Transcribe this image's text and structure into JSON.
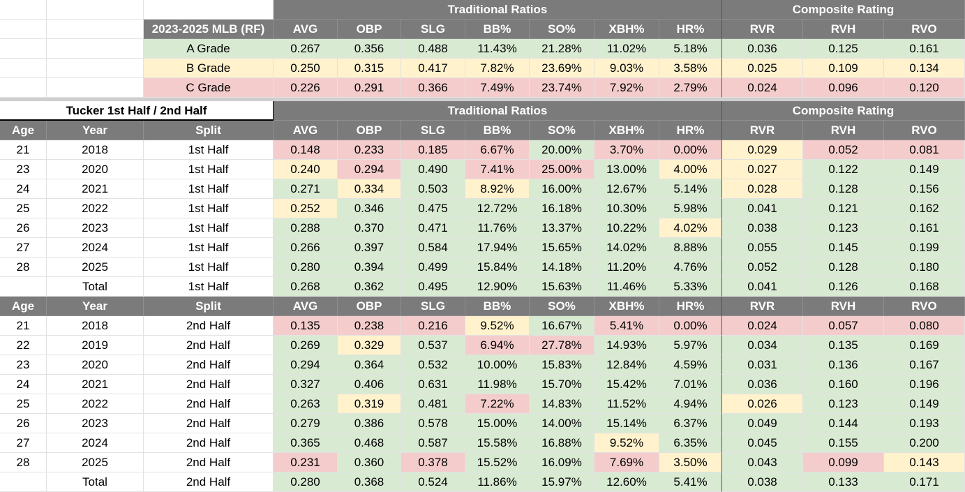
{
  "top": {
    "group_headers": {
      "traditional": "Traditional Ratios",
      "composite": "Composite Rating"
    },
    "label_header": "2023-2025 MLB (RF)",
    "columns": [
      "AVG",
      "OBP",
      "SLG",
      "BB%",
      "SO%",
      "XBH%",
      "HR%",
      "RVR",
      "RVH",
      "RVO"
    ],
    "grades": [
      {
        "label": "A Grade",
        "color": "green",
        "values": [
          "0.267",
          "0.356",
          "0.488",
          "11.43%",
          "21.28%",
          "11.02%",
          "5.18%",
          "0.036",
          "0.125",
          "0.161"
        ]
      },
      {
        "label": "B Grade",
        "color": "yellow",
        "values": [
          "0.250",
          "0.315",
          "0.417",
          "7.82%",
          "23.69%",
          "9.03%",
          "3.58%",
          "0.025",
          "0.109",
          "0.134"
        ]
      },
      {
        "label": "C Grade",
        "color": "red",
        "values": [
          "0.226",
          "0.291",
          "0.366",
          "7.49%",
          "23.74%",
          "7.92%",
          "2.79%",
          "0.024",
          "0.096",
          "0.120"
        ]
      }
    ]
  },
  "tucker": {
    "title": "Tucker 1st Half / 2nd Half",
    "group_headers": {
      "traditional": "Traditional Ratios",
      "composite": "Composite Rating"
    },
    "headers": [
      "Age",
      "Year",
      "Split",
      "AVG",
      "OBP",
      "SLG",
      "BB%",
      "SO%",
      "XBH%",
      "HR%",
      "RVR",
      "RVH",
      "RVO"
    ],
    "first_half": [
      {
        "age": "21",
        "year": "2018",
        "split": "1st Half",
        "values": [
          "0.148",
          "0.233",
          "0.185",
          "6.67%",
          "20.00%",
          "3.70%",
          "0.00%",
          "0.029",
          "0.052",
          "0.081"
        ],
        "colors": [
          "red",
          "red",
          "red",
          "red",
          "green",
          "red",
          "red",
          "yellow",
          "red",
          "red"
        ]
      },
      {
        "age": "23",
        "year": "2020",
        "split": "1st Half",
        "values": [
          "0.240",
          "0.294",
          "0.490",
          "7.41%",
          "25.00%",
          "13.00%",
          "4.00%",
          "0.027",
          "0.122",
          "0.149"
        ],
        "colors": [
          "yellow",
          "red",
          "green",
          "red",
          "red",
          "green",
          "yellow",
          "yellow",
          "green",
          "green"
        ]
      },
      {
        "age": "24",
        "year": "2021",
        "split": "1st Half",
        "values": [
          "0.271",
          "0.334",
          "0.503",
          "8.92%",
          "16.00%",
          "12.67%",
          "5.14%",
          "0.028",
          "0.128",
          "0.156"
        ],
        "colors": [
          "green",
          "yellow",
          "green",
          "yellow",
          "green",
          "green",
          "green",
          "yellow",
          "green",
          "green"
        ]
      },
      {
        "age": "25",
        "year": "2022",
        "split": "1st Half",
        "values": [
          "0.252",
          "0.346",
          "0.475",
          "12.72%",
          "16.18%",
          "10.30%",
          "5.98%",
          "0.041",
          "0.121",
          "0.162"
        ],
        "colors": [
          "yellow",
          "green",
          "green",
          "green",
          "green",
          "green",
          "green",
          "green",
          "green",
          "green"
        ]
      },
      {
        "age": "26",
        "year": "2023",
        "split": "1st Half",
        "values": [
          "0.288",
          "0.370",
          "0.471",
          "11.76%",
          "13.37%",
          "10.22%",
          "4.02%",
          "0.038",
          "0.123",
          "0.161"
        ],
        "colors": [
          "green",
          "green",
          "green",
          "green",
          "green",
          "green",
          "yellow",
          "green",
          "green",
          "green"
        ]
      },
      {
        "age": "27",
        "year": "2024",
        "split": "1st Half",
        "values": [
          "0.266",
          "0.397",
          "0.584",
          "17.94%",
          "15.65%",
          "14.02%",
          "8.88%",
          "0.055",
          "0.145",
          "0.199"
        ],
        "colors": [
          "green",
          "green",
          "green",
          "green",
          "green",
          "green",
          "green",
          "green",
          "green",
          "green"
        ]
      },
      {
        "age": "28",
        "year": "2025",
        "split": "1st Half",
        "values": [
          "0.280",
          "0.394",
          "0.499",
          "15.84%",
          "14.18%",
          "11.20%",
          "4.76%",
          "0.052",
          "0.128",
          "0.180"
        ],
        "colors": [
          "green",
          "green",
          "green",
          "green",
          "green",
          "green",
          "green",
          "green",
          "green",
          "green"
        ]
      },
      {
        "age": "",
        "year": "Total",
        "split": "1st Half",
        "values": [
          "0.268",
          "0.362",
          "0.495",
          "12.90%",
          "15.63%",
          "11.46%",
          "5.33%",
          "0.041",
          "0.126",
          "0.168"
        ],
        "colors": [
          "green",
          "green",
          "green",
          "green",
          "green",
          "green",
          "green",
          "green",
          "green",
          "green"
        ]
      }
    ],
    "second_half": [
      {
        "age": "21",
        "year": "2018",
        "split": "2nd Half",
        "values": [
          "0.135",
          "0.238",
          "0.216",
          "9.52%",
          "16.67%",
          "5.41%",
          "0.00%",
          "0.024",
          "0.057",
          "0.080"
        ],
        "colors": [
          "red",
          "red",
          "red",
          "yellow",
          "green",
          "red",
          "red",
          "red",
          "red",
          "red"
        ]
      },
      {
        "age": "22",
        "year": "2019",
        "split": "2nd Half",
        "values": [
          "0.269",
          "0.329",
          "0.537",
          "6.94%",
          "27.78%",
          "14.93%",
          "5.97%",
          "0.034",
          "0.135",
          "0.169"
        ],
        "colors": [
          "green",
          "yellow",
          "green",
          "red",
          "red",
          "green",
          "green",
          "green",
          "green",
          "green"
        ]
      },
      {
        "age": "23",
        "year": "2020",
        "split": "2nd Half",
        "values": [
          "0.294",
          "0.364",
          "0.532",
          "10.00%",
          "15.83%",
          "12.84%",
          "4.59%",
          "0.031",
          "0.136",
          "0.167"
        ],
        "colors": [
          "green",
          "green",
          "green",
          "green",
          "green",
          "green",
          "green",
          "green",
          "green",
          "green"
        ]
      },
      {
        "age": "24",
        "year": "2021",
        "split": "2nd Half",
        "values": [
          "0.327",
          "0.406",
          "0.631",
          "11.98%",
          "15.70%",
          "15.42%",
          "7.01%",
          "0.036",
          "0.160",
          "0.196"
        ],
        "colors": [
          "green",
          "green",
          "green",
          "green",
          "green",
          "green",
          "green",
          "green",
          "green",
          "green"
        ]
      },
      {
        "age": "25",
        "year": "2022",
        "split": "2nd Half",
        "values": [
          "0.263",
          "0.319",
          "0.481",
          "7.22%",
          "14.83%",
          "11.52%",
          "4.94%",
          "0.026",
          "0.123",
          "0.149"
        ],
        "colors": [
          "green",
          "yellow",
          "green",
          "red",
          "green",
          "green",
          "green",
          "yellow",
          "green",
          "green"
        ]
      },
      {
        "age": "26",
        "year": "2023",
        "split": "2nd Half",
        "values": [
          "0.279",
          "0.386",
          "0.578",
          "15.00%",
          "14.00%",
          "15.14%",
          "6.37%",
          "0.049",
          "0.144",
          "0.193"
        ],
        "colors": [
          "green",
          "green",
          "green",
          "green",
          "green",
          "green",
          "green",
          "green",
          "green",
          "green"
        ]
      },
      {
        "age": "27",
        "year": "2024",
        "split": "2nd Half",
        "values": [
          "0.365",
          "0.468",
          "0.587",
          "15.58%",
          "16.88%",
          "9.52%",
          "6.35%",
          "0.045",
          "0.155",
          "0.200"
        ],
        "colors": [
          "green",
          "green",
          "green",
          "green",
          "green",
          "yellow",
          "green",
          "green",
          "green",
          "green"
        ]
      },
      {
        "age": "28",
        "year": "2025",
        "split": "2nd Half",
        "values": [
          "0.231",
          "0.360",
          "0.378",
          "15.52%",
          "16.09%",
          "7.69%",
          "3.50%",
          "0.043",
          "0.099",
          "0.143"
        ],
        "colors": [
          "red",
          "green",
          "red",
          "green",
          "green",
          "red",
          "yellow",
          "green",
          "red",
          "yellow"
        ]
      },
      {
        "age": "",
        "year": "Total",
        "split": "2nd Half",
        "values": [
          "0.280",
          "0.368",
          "0.524",
          "11.86%",
          "15.97%",
          "12.60%",
          "5.41%",
          "0.038",
          "0.133",
          "0.171"
        ],
        "colors": [
          "green",
          "green",
          "green",
          "green",
          "green",
          "green",
          "green",
          "green",
          "green",
          "green"
        ]
      }
    ]
  }
}
